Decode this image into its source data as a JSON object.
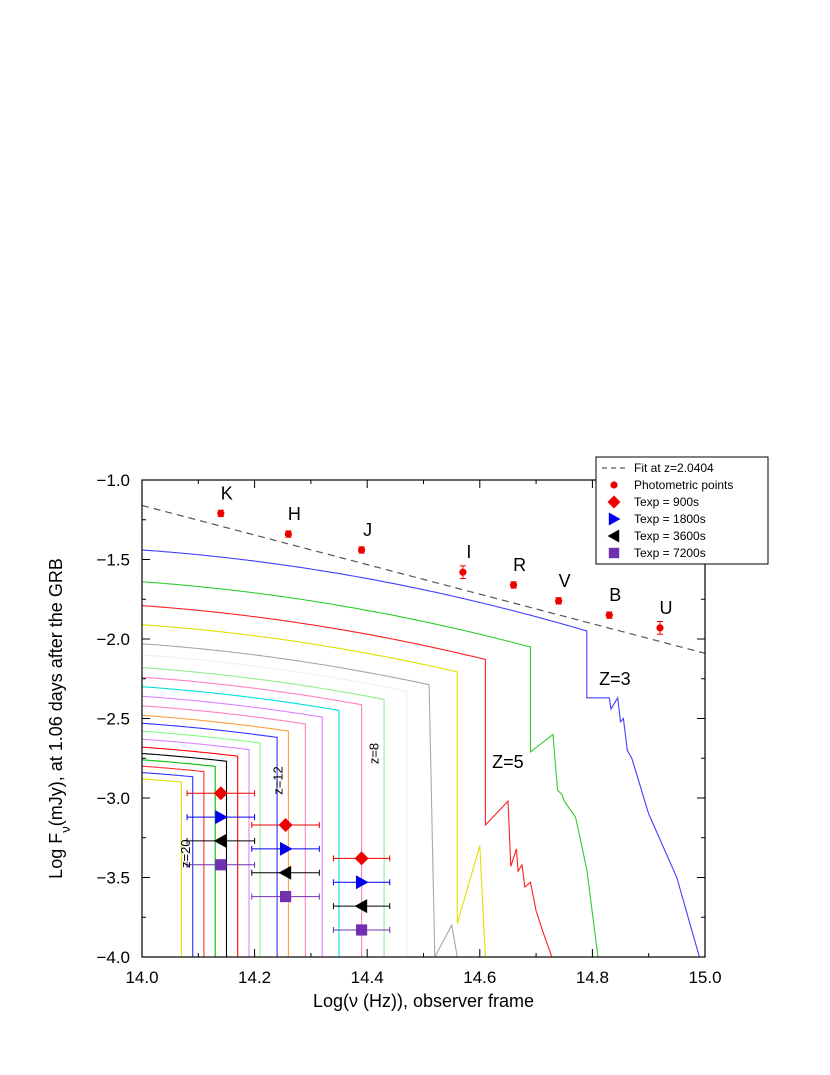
{
  "chart_data": {
    "type": "line",
    "xlabel": "Log(ν (Hz)), observer frame",
    "ylabel_parts": {
      "pre": "Log F",
      "sub": "ν",
      "post": "(mJy), at 1.06 days after the GRB"
    },
    "xlim": [
      14.0,
      15.0
    ],
    "ylim": [
      -4.0,
      -1.0
    ],
    "x_ticks": [
      "14.0",
      "14.2",
      "14.4",
      "14.6",
      "14.8",
      "15.0"
    ],
    "y_ticks": [
      "−1.0",
      "−1.5",
      "−2.0",
      "−2.5",
      "−3.0",
      "−3.5",
      "−4.0"
    ],
    "grid": false,
    "legend_position": "top-right",
    "legend": [
      {
        "label": "Fit at z=2.0404",
        "symbol": "dashed",
        "color": "#555555"
      },
      {
        "label": "Photometric points",
        "symbol": "dot",
        "color": "#ee0000"
      },
      {
        "label": "Texp = 900s",
        "symbol": "diamond",
        "color": "#ee0000"
      },
      {
        "label": "Texp = 1800s",
        "symbol": "triangle-right",
        "color": "#0000ee"
      },
      {
        "label": "Texp = 3600s",
        "symbol": "triangle-left",
        "color": "#000000"
      },
      {
        "label": "Texp = 7200s",
        "symbol": "square",
        "color": "#7030b0"
      }
    ],
    "fit_line": {
      "x": [
        14.0,
        15.0
      ],
      "y": [
        -1.16,
        -2.09
      ]
    },
    "photometric_points": [
      {
        "band": "K",
        "x": 14.14,
        "y": -1.21,
        "err": 0.02
      },
      {
        "band": "H",
        "x": 14.26,
        "y": -1.34,
        "err": 0.02
      },
      {
        "band": "J",
        "x": 14.39,
        "y": -1.44,
        "err": 0.02
      },
      {
        "band": "I",
        "x": 14.57,
        "y": -1.58,
        "err": 0.04
      },
      {
        "band": "R",
        "x": 14.66,
        "y": -1.66,
        "err": 0.02
      },
      {
        "band": "V",
        "x": 14.74,
        "y": -1.76,
        "err": 0.02
      },
      {
        "band": "B",
        "x": 14.83,
        "y": -1.85,
        "err": 0.02
      },
      {
        "band": "U",
        "x": 14.92,
        "y": -1.93,
        "err": 0.04
      }
    ],
    "model_curves": [
      {
        "y0": -1.44,
        "color": "#4040ff",
        "cut": 14.79,
        "label": "Z=3",
        "tail": [
          [
            14.79,
            -2.37
          ],
          [
            14.83,
            -2.37
          ],
          [
            14.833,
            -2.44
          ],
          [
            14.845,
            -2.37
          ],
          [
            14.85,
            -2.52
          ],
          [
            14.855,
            -2.5
          ],
          [
            14.862,
            -2.7
          ],
          [
            14.87,
            -2.75
          ],
          [
            14.9,
            -3.1
          ],
          [
            14.95,
            -3.5
          ],
          [
            14.99,
            -4.0
          ]
        ]
      },
      {
        "y0": -1.64,
        "color": "#30cc30",
        "cut": 14.69,
        "tail": [
          [
            14.69,
            -2.71
          ],
          [
            14.73,
            -2.6
          ],
          [
            14.738,
            -2.95
          ],
          [
            14.746,
            -2.98
          ],
          [
            14.75,
            -3.02
          ],
          [
            14.77,
            -3.12
          ],
          [
            14.775,
            -3.2
          ],
          [
            14.79,
            -3.45
          ],
          [
            14.81,
            -4.0
          ]
        ]
      },
      {
        "y0": -1.79,
        "color": "#ff2020",
        "cut": 14.61,
        "label": "Z=5",
        "tail": [
          [
            14.61,
            -3.17
          ],
          [
            14.65,
            -3.02
          ],
          [
            14.655,
            -3.43
          ],
          [
            14.665,
            -3.32
          ],
          [
            14.668,
            -3.46
          ],
          [
            14.675,
            -3.42
          ],
          [
            14.68,
            -3.56
          ],
          [
            14.69,
            -3.53
          ],
          [
            14.7,
            -3.71
          ],
          [
            14.713,
            -3.85
          ],
          [
            14.728,
            -4.0
          ]
        ]
      },
      {
        "y0": -1.91,
        "color": "#e0e000",
        "cut": 14.56,
        "tail": [
          [
            14.56,
            -3.79
          ],
          [
            14.6,
            -3.3
          ],
          [
            14.61,
            -4.0
          ]
        ]
      },
      {
        "y0": -2.03,
        "color": "#a8a8a8",
        "cut": 14.51,
        "tail": [
          [
            14.52,
            -4.0
          ],
          [
            14.55,
            -3.8
          ],
          [
            14.56,
            -4.0
          ]
        ]
      },
      {
        "y0": -2.1,
        "color": "#eeeeee",
        "cut": 14.47,
        "label": "z=8"
      },
      {
        "y0": -2.18,
        "color": "#90ee90",
        "cut": 14.43
      },
      {
        "y0": -2.24,
        "color": "#ff80c0",
        "cut": 14.39
      },
      {
        "y0": -2.3,
        "color": "#00e0e0",
        "cut": 14.35
      },
      {
        "y0": -2.36,
        "color": "#e080ff",
        "cut": 14.32
      },
      {
        "y0": -2.42,
        "color": "#ff80c0",
        "cut": 14.29,
        "label": "z=12"
      },
      {
        "y0": -2.48,
        "color": "#ffa040",
        "cut": 14.26
      },
      {
        "y0": -2.53,
        "color": "#3030ff",
        "cut": 14.24
      },
      {
        "y0": -2.58,
        "color": "#80ff80",
        "cut": 14.21
      },
      {
        "y0": -2.63,
        "color": "#e080ff",
        "cut": 14.19
      },
      {
        "y0": -2.68,
        "color": "#ff0000",
        "cut": 14.17
      },
      {
        "y0": -2.72,
        "color": "#000000",
        "cut": 14.15
      },
      {
        "y0": -2.76,
        "color": "#00c000",
        "cut": 14.13
      },
      {
        "y0": -2.8,
        "color": "#ff3030",
        "cut": 14.11
      },
      {
        "y0": -2.84,
        "color": "#3030ff",
        "cut": 14.09,
        "label": "z=20"
      },
      {
        "y0": -2.88,
        "color": "#e0e000",
        "cut": 14.07
      }
    ],
    "curve_labels": [
      {
        "text": "Z=3",
        "x": 14.84,
        "y": -2.29,
        "size": 18,
        "rotate": 0
      },
      {
        "text": "Z=5",
        "x": 14.65,
        "y": -2.81,
        "size": 18,
        "rotate": 0
      },
      {
        "text": "z=8",
        "x": 14.42,
        "y": -2.72,
        "size": 13,
        "rotate": -90
      },
      {
        "text": "z=12",
        "x": 14.25,
        "y": -2.89,
        "size": 13,
        "rotate": -90
      },
      {
        "text": "z=20",
        "x": 14.085,
        "y": -3.35,
        "size": 13,
        "rotate": -90
      }
    ],
    "limit_points": [
      {
        "x": 14.14,
        "y": -2.97,
        "xerr": 0.06,
        "symbol": "diamond",
        "color": "#ee0000"
      },
      {
        "x": 14.14,
        "y": -3.12,
        "xerr": 0.06,
        "symbol": "triangle-right",
        "color": "#0000ee"
      },
      {
        "x": 14.14,
        "y": -3.27,
        "xerr": 0.06,
        "symbol": "triangle-left",
        "color": "#000000"
      },
      {
        "x": 14.14,
        "y": -3.42,
        "xerr": 0.06,
        "symbol": "square",
        "color": "#7030b0"
      },
      {
        "x": 14.255,
        "y": -3.17,
        "xerr": 0.06,
        "symbol": "diamond",
        "color": "#ee0000"
      },
      {
        "x": 14.255,
        "y": -3.32,
        "xerr": 0.06,
        "symbol": "triangle-right",
        "color": "#0000ee"
      },
      {
        "x": 14.255,
        "y": -3.47,
        "xerr": 0.06,
        "symbol": "triangle-left",
        "color": "#000000"
      },
      {
        "x": 14.255,
        "y": -3.62,
        "xerr": 0.06,
        "symbol": "square",
        "color": "#7030b0"
      },
      {
        "x": 14.39,
        "y": -3.38,
        "xerr": 0.05,
        "symbol": "diamond",
        "color": "#ee0000"
      },
      {
        "x": 14.39,
        "y": -3.53,
        "xerr": 0.05,
        "symbol": "triangle-right",
        "color": "#0000ee"
      },
      {
        "x": 14.39,
        "y": -3.68,
        "xerr": 0.05,
        "symbol": "triangle-left",
        "color": "#000000"
      },
      {
        "x": 14.39,
        "y": -3.83,
        "xerr": 0.05,
        "symbol": "square",
        "color": "#7030b0"
      }
    ]
  }
}
